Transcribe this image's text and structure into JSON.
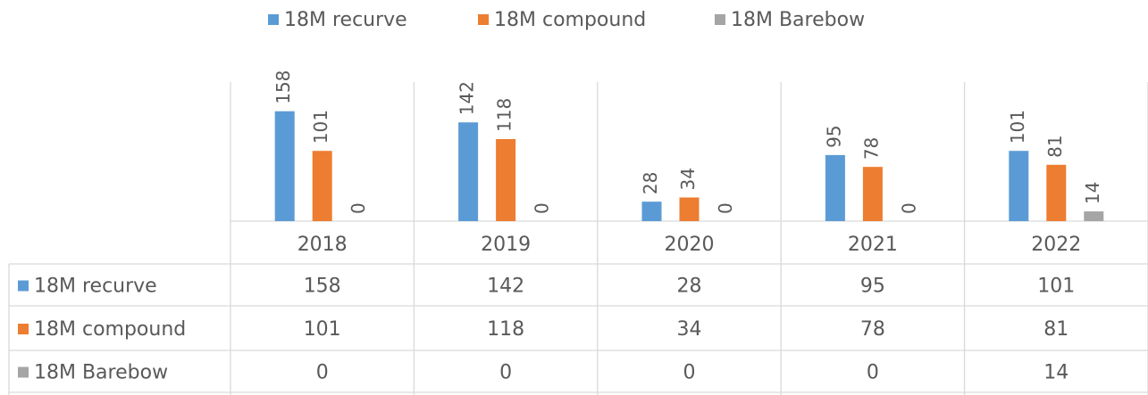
{
  "chart_data": {
    "type": "bar",
    "categories": [
      "2018",
      "2019",
      "2020",
      "2021",
      "2022"
    ],
    "series": [
      {
        "name": "18M recurve",
        "color": "#5b9bd5",
        "values": [
          158,
          142,
          28,
          95,
          101
        ]
      },
      {
        "name": "18M compound",
        "color": "#ed7d31",
        "values": [
          101,
          118,
          34,
          78,
          81
        ]
      },
      {
        "name": "18M Barebow",
        "color": "#a5a5a5",
        "values": [
          0,
          0,
          0,
          0,
          14
        ]
      }
    ],
    "ylim": [
      0,
      200
    ],
    "legend": "top",
    "data_table": true
  }
}
